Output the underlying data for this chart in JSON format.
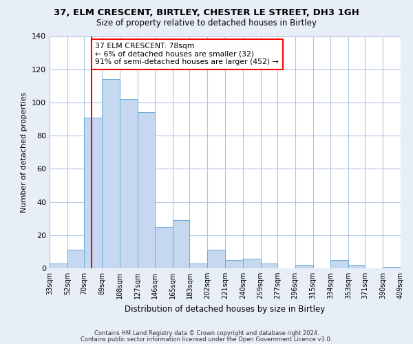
{
  "title": "37, ELM CRESCENT, BIRTLEY, CHESTER LE STREET, DH3 1GH",
  "subtitle": "Size of property relative to detached houses in Birtley",
  "xlabel": "Distribution of detached houses by size in Birtley",
  "ylabel": "Number of detached properties",
  "bin_labels": [
    "33sqm",
    "52sqm",
    "70sqm",
    "89sqm",
    "108sqm",
    "127sqm",
    "146sqm",
    "165sqm",
    "183sqm",
    "202sqm",
    "221sqm",
    "240sqm",
    "259sqm",
    "277sqm",
    "296sqm",
    "315sqm",
    "334sqm",
    "353sqm",
    "371sqm",
    "390sqm",
    "409sqm"
  ],
  "bin_edges": [
    33,
    52,
    70,
    89,
    108,
    127,
    146,
    165,
    183,
    202,
    221,
    240,
    259,
    277,
    296,
    315,
    334,
    353,
    371,
    390,
    409
  ],
  "bar_heights": [
    3,
    11,
    91,
    114,
    102,
    94,
    25,
    29,
    3,
    11,
    5,
    6,
    3,
    0,
    2,
    0,
    5,
    2,
    0,
    1
  ],
  "bar_color": "#c5d8f0",
  "bar_edge_color": "#6baed6",
  "vline_x": 78,
  "vline_color": "red",
  "annotation_text": "37 ELM CRESCENT: 78sqm\n← 6% of detached houses are smaller (32)\n91% of semi-detached houses are larger (452) →",
  "annotation_box_color": "white",
  "annotation_box_edge": "red",
  "ylim": [
    0,
    140
  ],
  "yticks": [
    0,
    20,
    40,
    60,
    80,
    100,
    120,
    140
  ],
  "footnote1": "Contains HM Land Registry data © Crown copyright and database right 2024.",
  "footnote2": "Contains public sector information licensed under the Open Government Licence v3.0.",
  "bg_color": "#e8eef7",
  "plot_bg_color": "white",
  "grid_color": "#b0c4de"
}
